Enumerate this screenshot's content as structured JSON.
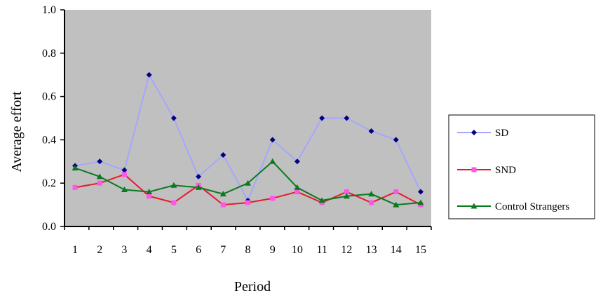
{
  "chart_data": {
    "type": "line",
    "xlabel": "Period",
    "ylabel": "Average effort",
    "x": [
      "1",
      "2",
      "3",
      "4",
      "5",
      "6",
      "7",
      "8",
      "9",
      "10",
      "11",
      "12",
      "13",
      "14",
      "15"
    ],
    "yticks": [
      "0.0",
      "0.2",
      "0.4",
      "0.6",
      "0.8",
      "1.0"
    ],
    "ylim": [
      0,
      1.0
    ],
    "grid": false,
    "plot_background": "#c0c0c0",
    "legend_position": "right",
    "series": [
      {
        "name": "SD",
        "color": "#a6a6ff",
        "marker": "diamond",
        "marker_color": "#000080",
        "values": [
          0.28,
          0.3,
          0.26,
          0.7,
          0.5,
          0.23,
          0.33,
          0.12,
          0.4,
          0.3,
          0.5,
          0.5,
          0.44,
          0.4,
          0.16
        ]
      },
      {
        "name": "SND",
        "color": "#e8192c",
        "marker": "square",
        "marker_color": "#ff55e8",
        "values": [
          0.18,
          0.2,
          0.24,
          0.14,
          0.11,
          0.19,
          0.1,
          0.11,
          0.13,
          0.16,
          0.11,
          0.16,
          0.11,
          0.16,
          0.1
        ]
      },
      {
        "name": "Control Strangers",
        "color": "#0a7a1f",
        "marker": "triangle",
        "marker_color": "#0a7a1f",
        "values": [
          0.27,
          0.23,
          0.17,
          0.16,
          0.19,
          0.18,
          0.15,
          0.2,
          0.3,
          0.18,
          0.12,
          0.14,
          0.15,
          0.1,
          0.11
        ]
      }
    ]
  }
}
